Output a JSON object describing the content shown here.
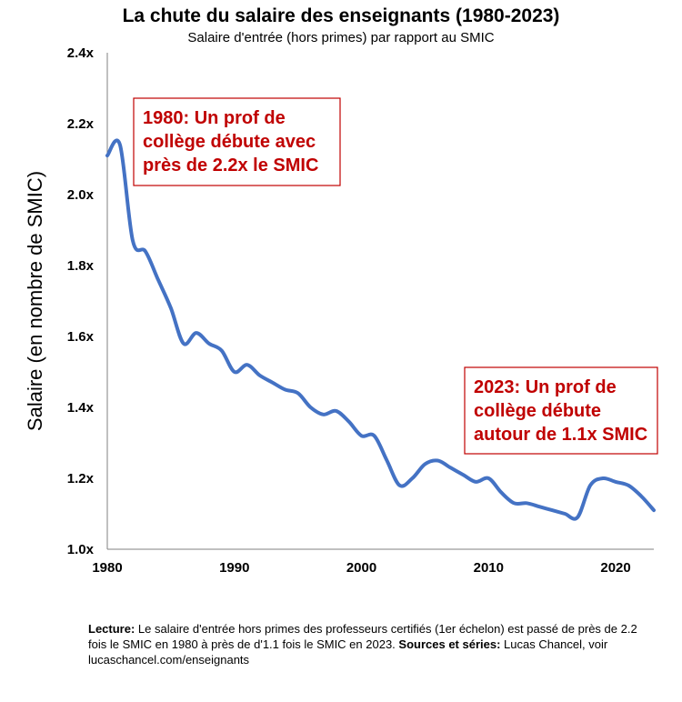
{
  "chart_data": {
    "type": "line",
    "title": "La chute du salaire des enseignants (1980-2023)",
    "subtitle": "Salaire d'entrée (hors primes) par rapport au SMIC",
    "xlabel": "",
    "ylabel": "Salaire (en nombre de SMIC)",
    "xlim": [
      1980,
      2023
    ],
    "ylim": [
      1.0,
      2.4
    ],
    "x_ticks": [
      1980,
      1990,
      2000,
      2010,
      2020
    ],
    "x_tick_labels": [
      "1980",
      "1990",
      "2000",
      "2010",
      "2020"
    ],
    "y_ticks": [
      1.0,
      1.2,
      1.4,
      1.6,
      1.8,
      2.0,
      2.2,
      2.4
    ],
    "y_tick_labels": [
      "1.0x",
      "1.2x",
      "1.4x",
      "1.6x",
      "1.8x",
      "2.0x",
      "2.2x",
      "2.4x"
    ],
    "grid": false,
    "line_color": "#4472C4",
    "annotation_color": "#C00000",
    "series": [
      {
        "x": [
          1980,
          1981,
          1982,
          1983,
          1984,
          1985,
          1986,
          1987,
          1988,
          1989,
          1990,
          1991,
          1992,
          1993,
          1994,
          1995,
          1996,
          1997,
          1998,
          1999,
          2000,
          2001,
          2002,
          2003,
          2004,
          2005,
          2006,
          2007,
          2008,
          2009,
          2010,
          2011,
          2012,
          2013,
          2014,
          2015,
          2016,
          2017,
          2018,
          2019,
          2020,
          2021,
          2022,
          2023
        ],
        "values": [
          2.11,
          2.14,
          1.87,
          1.84,
          1.76,
          1.68,
          1.58,
          1.61,
          1.58,
          1.56,
          1.5,
          1.52,
          1.49,
          1.47,
          1.45,
          1.44,
          1.4,
          1.38,
          1.39,
          1.36,
          1.32,
          1.32,
          1.25,
          1.18,
          1.2,
          1.24,
          1.25,
          1.23,
          1.21,
          1.19,
          1.2,
          1.16,
          1.13,
          1.13,
          1.12,
          1.11,
          1.1,
          1.09,
          1.18,
          1.2,
          1.19,
          1.18,
          1.15,
          1.11
        ]
      }
    ],
    "annotations": [
      {
        "lines": [
          "1980: Un prof de",
          "collège débute avec",
          "près de 2.2x le SMIC"
        ]
      },
      {
        "lines": [
          "2023: Un prof de",
          "collège débute",
          "autour de 1.1x SMIC"
        ]
      }
    ]
  },
  "footnote": {
    "lecture_label": "Lecture:",
    "lecture_text": " Le salaire d'entrée hors primes des professeurs certifiés (1er échelon) est passé de près de 2.2 fois le SMIC en 1980 à près de d'1.1 fois le SMIC en 2023. ",
    "sources_label": "Sources et séries:",
    "sources_text": " Lucas Chancel, voir lucaschancel.com/enseignants"
  }
}
